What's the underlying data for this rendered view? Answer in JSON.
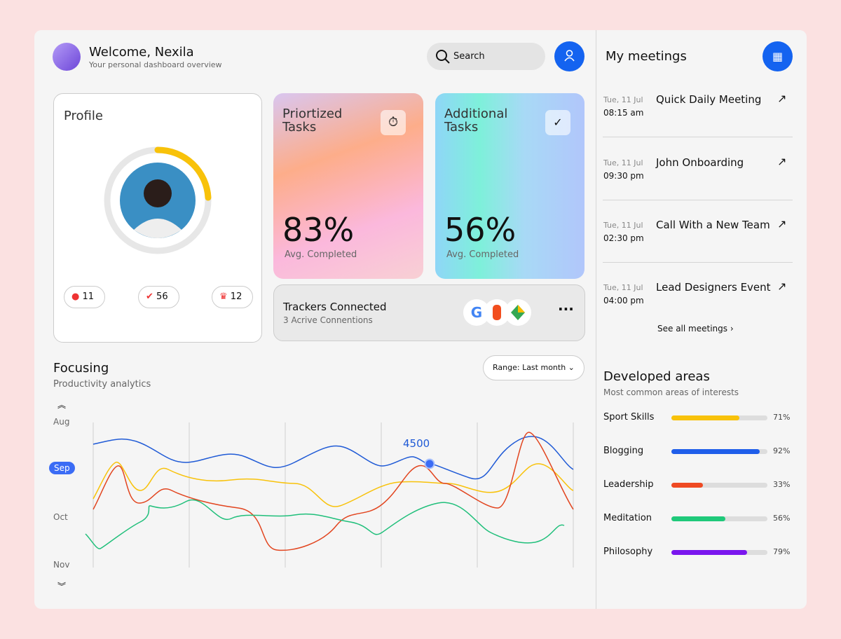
{
  "header": {
    "title": "Welcome, Nexila",
    "subtitle": "Your personal dashboard overview",
    "search": "Search"
  },
  "profile": {
    "title": "Profile",
    "stats": [
      "11",
      "56",
      "12"
    ]
  },
  "tasks": [
    {
      "title": "Priortized Tasks",
      "value": "83%",
      "caption": "Avg. Completed"
    },
    {
      "title": "Additional Tasks",
      "value": "56%",
      "caption": "Avg. Completed"
    }
  ],
  "trackers": {
    "title": "Trackers Connected",
    "subtitle": "3 Acrive Connentions"
  },
  "focusing": {
    "title": "Focusing",
    "subtitle": "Productivity analytics",
    "range": "Range: Last month",
    "months": [
      "Aug",
      "Sep",
      "Oct",
      "Nov"
    ],
    "highlight": "4500"
  },
  "meetings": {
    "title": "My meetings",
    "items": [
      {
        "date": "Tue, 11 Jul",
        "time": "08:15 am",
        "name": "Quick Daily Meeting"
      },
      {
        "date": "Tue, 11 Jul",
        "time": "09:30 pm",
        "name": "John Onboarding"
      },
      {
        "date": "Tue, 11 Jul",
        "time": "02:30 pm",
        "name": "Call With a New Team"
      },
      {
        "date": "Tue, 11 Jul",
        "time": "04:00 pm",
        "name": "Lead Designers Event"
      }
    ],
    "see_all": "See all meetings"
  },
  "areas": {
    "title": "Developed areas",
    "subtitle": "Most common areas of interests",
    "items": [
      {
        "name": "Sport Skills",
        "value": 71,
        "label": "71%",
        "color": "#f8c20a"
      },
      {
        "name": "Blogging",
        "value": 92,
        "label": "92%",
        "color": "#1f5eea"
      },
      {
        "name": "Leadership",
        "value": 33,
        "label": "33%",
        "color": "#ef4a23"
      },
      {
        "name": "Meditation",
        "value": 56,
        "label": "56%",
        "color": "#1fc97a"
      },
      {
        "name": "Philosophy",
        "value": 79,
        "label": "79%",
        "color": "#7a16ee"
      }
    ]
  }
}
